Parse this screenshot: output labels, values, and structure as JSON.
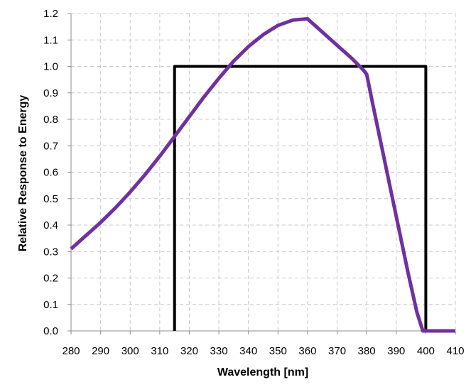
{
  "chart_data": {
    "type": "line",
    "xlabel": "Wavelength [nm]",
    "ylabel": "Relative Response to Energy",
    "xlim": [
      280,
      410
    ],
    "ylim": [
      0,
      1.2
    ],
    "x_ticks": [
      280,
      290,
      300,
      310,
      320,
      330,
      340,
      350,
      360,
      370,
      380,
      390,
      400,
      410
    ],
    "y_ticks": [
      0.0,
      0.1,
      0.2,
      0.3,
      0.4,
      0.5,
      0.6,
      0.7,
      0.8,
      0.9,
      1.0,
      1.1,
      1.2
    ],
    "y_tick_labels": [
      "0.0",
      "0.1",
      "0.2",
      "0.3",
      "0.4",
      "0.5",
      "0.6",
      "0.7",
      "0.8",
      "0.9",
      "1.0",
      "1.1",
      "1.2"
    ],
    "grid": true,
    "series": [
      {
        "color": "#7030a0",
        "x": [
          280,
          285,
          290,
          295,
          300,
          305,
          310,
          315,
          320,
          325,
          330,
          335,
          340,
          345,
          350,
          355,
          360,
          365,
          370,
          375,
          379,
          380,
          382,
          385,
          388,
          391,
          394,
          397,
          399,
          400,
          405,
          410
        ],
        "y": [
          0.31,
          0.36,
          0.41,
          0.465,
          0.525,
          0.59,
          0.66,
          0.735,
          0.81,
          0.885,
          0.955,
          1.02,
          1.075,
          1.12,
          1.155,
          1.175,
          1.18,
          1.13,
          1.08,
          1.03,
          0.985,
          0.97,
          0.86,
          0.7,
          0.54,
          0.38,
          0.22,
          0.07,
          0.0,
          0.0,
          0.0,
          0.0
        ]
      },
      {
        "color": "#000000",
        "x": [
          315,
          315,
          400,
          400
        ],
        "y": [
          0.0,
          1.0,
          1.0,
          0.0
        ]
      }
    ]
  }
}
